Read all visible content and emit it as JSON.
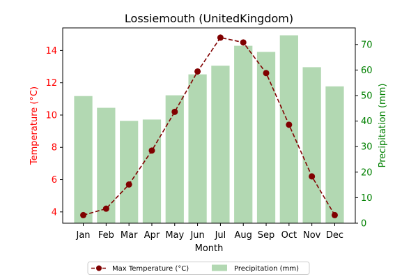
{
  "chart_data": {
    "type": "bar+line",
    "title": "Lossiemouth (UnitedKingdom)",
    "xlabel": "Month",
    "categories": [
      "Jan",
      "Feb",
      "Mar",
      "Apr",
      "May",
      "Jun",
      "Jul",
      "Aug",
      "Sep",
      "Oct",
      "Nov",
      "Dec"
    ],
    "left_axis": {
      "label": "Temperature (°C)",
      "color": "#ff0000",
      "ylim": [
        3.3,
        15.4
      ],
      "ticks": [
        4,
        6,
        8,
        10,
        12,
        14
      ]
    },
    "right_axis": {
      "label": "Precipitation (mm)",
      "color": "#008000",
      "ylim": [
        0,
        76.5
      ],
      "ticks": [
        0,
        10,
        20,
        30,
        40,
        50,
        60,
        70
      ]
    },
    "series": [
      {
        "name": "Max Temperature (°C)",
        "kind": "line",
        "axis": "left",
        "color": "#800000",
        "line_style": "dashed",
        "marker": "circle",
        "values": [
          3.8,
          4.2,
          5.7,
          7.8,
          10.2,
          12.7,
          14.8,
          14.5,
          12.6,
          9.4,
          6.2,
          3.8
        ]
      },
      {
        "name": "Precipitation (mm)",
        "kind": "bar",
        "axis": "right",
        "color": "#b2d8b2",
        "values": [
          49.8,
          45.2,
          40.1,
          40.6,
          50.1,
          58.3,
          61.7,
          69.5,
          67.1,
          73.6,
          61.1,
          53.6
        ]
      }
    ],
    "legend": {
      "placement": "bottom-center",
      "columns": 2
    },
    "grid": false
  }
}
